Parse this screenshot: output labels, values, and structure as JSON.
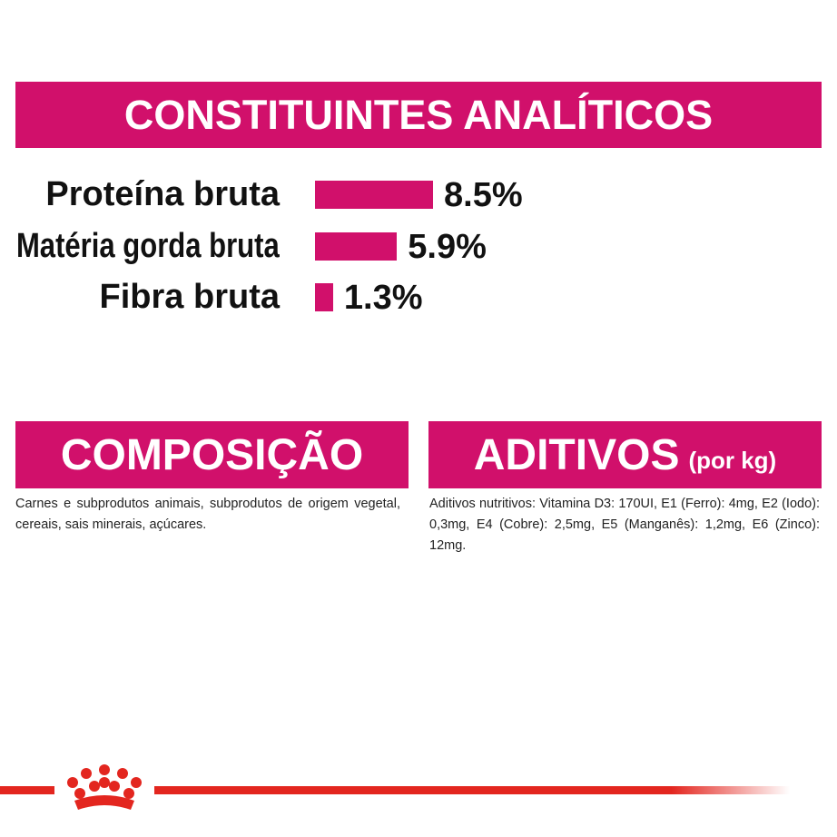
{
  "header": {
    "title": "CONSTITUINTES ANALÍTICOS"
  },
  "chart_data": {
    "type": "bar",
    "categories": [
      "Proteína bruta",
      "Matéria gorda bruta",
      "Fibra bruta"
    ],
    "values": [
      8.5,
      5.9,
      1.3
    ],
    "value_labels": [
      "8.5%",
      "5.9%",
      "1.3%"
    ],
    "color": "#d1106b"
  },
  "composition": {
    "title": "COMPOSIÇÃO",
    "text": "Carnes e subprodutos animais, subprodutos de origem vegetal, cereais, sais minerais, açúcares."
  },
  "additives": {
    "title": "ADITIVOS",
    "subtitle": "(por kg)",
    "text": "Aditivos nutritivos: Vitamina D3: 170UI, E1 (Ferro): 4mg, E2 (Iodo): 0,3mg, E4 (Cobre): 2,5mg, E5 (Manganês): 1,2mg, E6 (Zinco): 12mg."
  }
}
